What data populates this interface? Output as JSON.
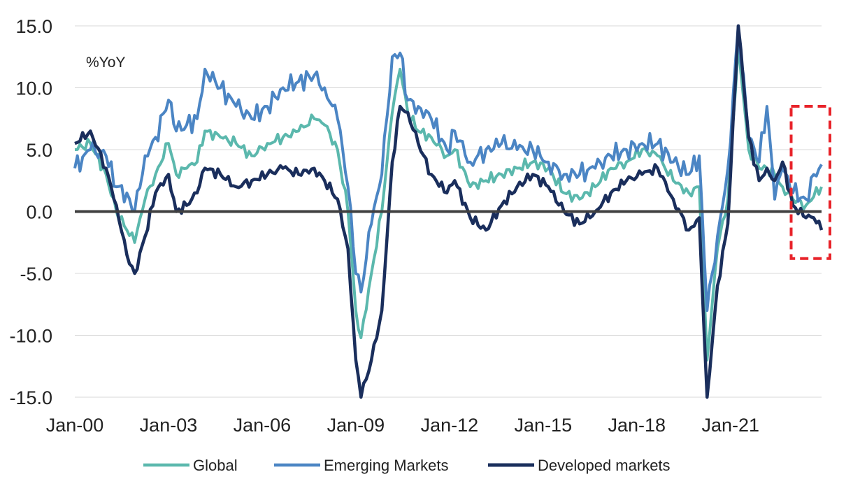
{
  "chart_data": {
    "type": "line",
    "title": "",
    "ylabel": "%YoY",
    "xlabel": "",
    "ylim": [
      -15,
      15
    ],
    "yticks": [
      "-15.0",
      "-10.0",
      "-5.0",
      "0.0",
      "5.0",
      "10.0",
      "15.0"
    ],
    "xticks": [
      "Jan-00",
      "Jan-03",
      "Jan-06",
      "Jan-09",
      "Jan-12",
      "Jan-15",
      "Jan-18",
      "Jan-21"
    ],
    "x_start": "2000-01",
    "x_end": "2023-12",
    "grid": "horizontal",
    "legend_position": "bottom",
    "zero_line_color": "#404040",
    "series": [
      {
        "name": "Global",
        "color": "#5bb8ad",
        "points": [
          [
            "2000-01",
            5.0
          ],
          [
            "2000-07",
            5.5
          ],
          [
            "2001-01",
            3.0
          ],
          [
            "2001-05",
            0.0
          ],
          [
            "2001-09",
            -1.5
          ],
          [
            "2001-12",
            -2.5
          ],
          [
            "2002-04",
            1.0
          ],
          [
            "2002-08",
            3.0
          ],
          [
            "2003-01",
            5.5
          ],
          [
            "2003-04",
            3.0
          ],
          [
            "2003-08",
            3.5
          ],
          [
            "2003-12",
            4.0
          ],
          [
            "2004-03",
            6.5
          ],
          [
            "2004-09",
            6.0
          ],
          [
            "2005-03",
            5.5
          ],
          [
            "2005-09",
            4.5
          ],
          [
            "2006-03",
            5.5
          ],
          [
            "2006-09",
            6.0
          ],
          [
            "2007-03",
            6.5
          ],
          [
            "2007-09",
            7.5
          ],
          [
            "2008-01",
            7.0
          ],
          [
            "2008-06",
            5.0
          ],
          [
            "2008-10",
            0.0
          ],
          [
            "2009-01",
            -8.0
          ],
          [
            "2009-03",
            -10.2
          ],
          [
            "2009-07",
            -5.0
          ],
          [
            "2009-11",
            0.0
          ],
          [
            "2010-03",
            8.0
          ],
          [
            "2010-06",
            11.5
          ],
          [
            "2010-09",
            8.0
          ],
          [
            "2011-01",
            6.5
          ],
          [
            "2011-06",
            6.0
          ],
          [
            "2011-12",
            4.5
          ],
          [
            "2012-03",
            5.0
          ],
          [
            "2012-09",
            2.0
          ],
          [
            "2013-03",
            2.5
          ],
          [
            "2013-09",
            3.0
          ],
          [
            "2014-03",
            3.5
          ],
          [
            "2014-09",
            4.0
          ],
          [
            "2015-03",
            3.5
          ],
          [
            "2015-09",
            1.5
          ],
          [
            "2016-03",
            1.0
          ],
          [
            "2016-09",
            2.0
          ],
          [
            "2017-03",
            3.5
          ],
          [
            "2017-09",
            4.0
          ],
          [
            "2018-03",
            5.0
          ],
          [
            "2018-09",
            4.5
          ],
          [
            "2019-03",
            2.5
          ],
          [
            "2019-09",
            1.5
          ],
          [
            "2020-01",
            2.0
          ],
          [
            "2020-04",
            -12.0
          ],
          [
            "2020-08",
            -3.0
          ],
          [
            "2020-12",
            1.0
          ],
          [
            "2021-04",
            13.5
          ],
          [
            "2021-08",
            5.0
          ],
          [
            "2021-12",
            3.5
          ],
          [
            "2022-03",
            3.5
          ],
          [
            "2022-06",
            3.0
          ],
          [
            "2022-09",
            2.0
          ],
          [
            "2023-01",
            1.0
          ],
          [
            "2023-06",
            0.5
          ],
          [
            "2023-09",
            1.2
          ],
          [
            "2023-12",
            2.0
          ]
        ]
      },
      {
        "name": "Emerging Markets",
        "color": "#4b85c4",
        "points": [
          [
            "2000-01",
            3.5
          ],
          [
            "2000-07",
            5.0
          ],
          [
            "2001-01",
            4.5
          ],
          [
            "2001-05",
            2.0
          ],
          [
            "2001-09",
            1.5
          ],
          [
            "2001-12",
            0.0
          ],
          [
            "2002-04",
            4.5
          ],
          [
            "2002-08",
            6.0
          ],
          [
            "2003-01",
            9.0
          ],
          [
            "2003-04",
            6.5
          ],
          [
            "2003-08",
            7.0
          ],
          [
            "2003-12",
            7.5
          ],
          [
            "2004-03",
            11.5
          ],
          [
            "2004-09",
            10.0
          ],
          [
            "2005-03",
            8.5
          ],
          [
            "2005-09",
            7.5
          ],
          [
            "2006-03",
            8.5
          ],
          [
            "2006-09",
            10.0
          ],
          [
            "2007-03",
            10.5
          ],
          [
            "2007-09",
            11.0
          ],
          [
            "2008-01",
            10.0
          ],
          [
            "2008-06",
            7.5
          ],
          [
            "2008-10",
            2.0
          ],
          [
            "2009-01",
            -5.0
          ],
          [
            "2009-03",
            -6.5
          ],
          [
            "2009-07",
            -1.0
          ],
          [
            "2009-11",
            3.0
          ],
          [
            "2010-03",
            12.5
          ],
          [
            "2010-06",
            12.8
          ],
          [
            "2010-09",
            9.0
          ],
          [
            "2011-01",
            8.5
          ],
          [
            "2011-06",
            7.5
          ],
          [
            "2011-12",
            5.0
          ],
          [
            "2012-03",
            6.5
          ],
          [
            "2012-09",
            4.0
          ],
          [
            "2013-03",
            5.0
          ],
          [
            "2013-09",
            5.5
          ],
          [
            "2014-03",
            5.0
          ],
          [
            "2014-09",
            5.0
          ],
          [
            "2015-03",
            4.0
          ],
          [
            "2015-09",
            3.0
          ],
          [
            "2016-03",
            3.0
          ],
          [
            "2016-09",
            3.5
          ],
          [
            "2017-03",
            4.5
          ],
          [
            "2017-09",
            5.0
          ],
          [
            "2018-03",
            5.5
          ],
          [
            "2018-09",
            5.5
          ],
          [
            "2019-03",
            4.0
          ],
          [
            "2019-09",
            3.0
          ],
          [
            "2020-01",
            4.5
          ],
          [
            "2020-04",
            -8.0
          ],
          [
            "2020-08",
            -2.0
          ],
          [
            "2020-12",
            3.5
          ],
          [
            "2021-04",
            15.0
          ],
          [
            "2021-08",
            6.0
          ],
          [
            "2021-12",
            4.0
          ],
          [
            "2022-03",
            8.5
          ],
          [
            "2022-06",
            1.0
          ],
          [
            "2022-09",
            3.5
          ],
          [
            "2023-01",
            1.5
          ],
          [
            "2023-06",
            1.0
          ],
          [
            "2023-09",
            3.0
          ],
          [
            "2023-12",
            3.8
          ]
        ]
      },
      {
        "name": "Developed markets",
        "color": "#1a2e5c",
        "points": [
          [
            "2000-01",
            5.5
          ],
          [
            "2000-07",
            6.5
          ],
          [
            "2001-01",
            3.5
          ],
          [
            "2001-05",
            0.5
          ],
          [
            "2001-09",
            -3.5
          ],
          [
            "2001-12",
            -5.0
          ],
          [
            "2002-04",
            -2.0
          ],
          [
            "2002-08",
            1.5
          ],
          [
            "2003-01",
            3.0
          ],
          [
            "2003-04",
            0.0
          ],
          [
            "2003-08",
            0.5
          ],
          [
            "2003-12",
            1.5
          ],
          [
            "2004-03",
            3.5
          ],
          [
            "2004-09",
            3.0
          ],
          [
            "2005-03",
            2.0
          ],
          [
            "2005-09",
            2.5
          ],
          [
            "2006-03",
            3.0
          ],
          [
            "2006-09",
            3.5
          ],
          [
            "2007-03",
            3.0
          ],
          [
            "2007-09",
            3.5
          ],
          [
            "2008-01",
            2.5
          ],
          [
            "2008-06",
            1.0
          ],
          [
            "2008-10",
            -3.0
          ],
          [
            "2009-01",
            -12.0
          ],
          [
            "2009-03",
            -15.0
          ],
          [
            "2009-07",
            -12.0
          ],
          [
            "2009-11",
            -8.0
          ],
          [
            "2010-03",
            4.0
          ],
          [
            "2010-06",
            8.5
          ],
          [
            "2010-09",
            8.0
          ],
          [
            "2011-01",
            5.5
          ],
          [
            "2011-06",
            3.0
          ],
          [
            "2011-12",
            1.5
          ],
          [
            "2012-03",
            2.5
          ],
          [
            "2012-09",
            -0.5
          ],
          [
            "2013-03",
            -1.5
          ],
          [
            "2013-09",
            0.5
          ],
          [
            "2014-03",
            2.0
          ],
          [
            "2014-09",
            3.0
          ],
          [
            "2015-03",
            2.0
          ],
          [
            "2015-09",
            0.0
          ],
          [
            "2016-03",
            -1.0
          ],
          [
            "2016-09",
            0.0
          ],
          [
            "2017-03",
            1.5
          ],
          [
            "2017-09",
            2.5
          ],
          [
            "2018-03",
            3.0
          ],
          [
            "2018-09",
            3.5
          ],
          [
            "2019-03",
            1.0
          ],
          [
            "2019-09",
            -1.5
          ],
          [
            "2020-01",
            -0.5
          ],
          [
            "2020-04",
            -15.0
          ],
          [
            "2020-08",
            -6.0
          ],
          [
            "2020-12",
            -1.0
          ],
          [
            "2021-04",
            15.0
          ],
          [
            "2021-08",
            6.0
          ],
          [
            "2021-12",
            2.5
          ],
          [
            "2022-03",
            3.5
          ],
          [
            "2022-06",
            2.5
          ],
          [
            "2022-09",
            4.0
          ],
          [
            "2023-01",
            0.5
          ],
          [
            "2023-06",
            -0.5
          ],
          [
            "2023-09",
            -0.5
          ],
          [
            "2023-12",
            -1.5
          ]
        ]
      }
    ],
    "highlight_box": {
      "x_range": [
        "2023-03",
        "2023-12"
      ],
      "y_range": [
        -3.8,
        8.5
      ],
      "color": "#e8232a",
      "style": "dashed"
    }
  }
}
